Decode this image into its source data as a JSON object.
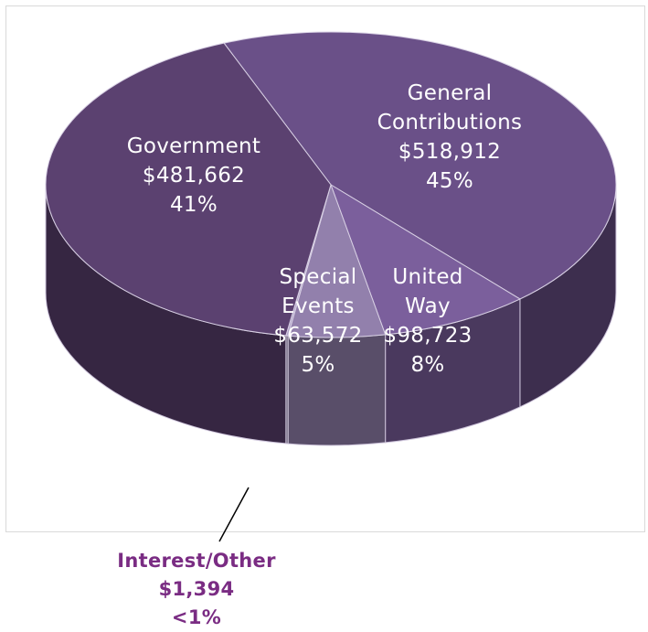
{
  "chart_data": {
    "type": "pie",
    "style": "3d",
    "slices": [
      {
        "name": "General Contributions",
        "value": 518912,
        "percent_label": "45%",
        "value_label": "$518,912",
        "color": "#6a5088"
      },
      {
        "name": "United Way",
        "value": 98723,
        "percent_label": "8%",
        "value_label": "$98,723",
        "color": "#7b5f9c"
      },
      {
        "name": "Special Events",
        "value": 63572,
        "percent_label": "5%",
        "value_label": "$63,572",
        "color": "#9280ac"
      },
      {
        "name": "Interest/Other",
        "value": 1394,
        "percent_label": "<1%",
        "value_label": "$1,394",
        "color": "#b0a3c8"
      },
      {
        "name": "Government",
        "value": 481662,
        "percent_label": "41%",
        "value_label": "$481,662",
        "color": "#5b4170"
      }
    ],
    "labels": {
      "general": [
        "General",
        "Contributions",
        "$518,912",
        "45%"
      ],
      "government": [
        "Government",
        "$481,662",
        "41%"
      ],
      "special": [
        "Special",
        "Events",
        "$63,572",
        "5%"
      ],
      "united": [
        "United",
        "Way",
        "$98,723",
        "8%"
      ],
      "interest": [
        "Interest/Other",
        "$1,394",
        "<1%"
      ]
    },
    "label_color_outside": "#7a2c83",
    "legend": "none"
  }
}
